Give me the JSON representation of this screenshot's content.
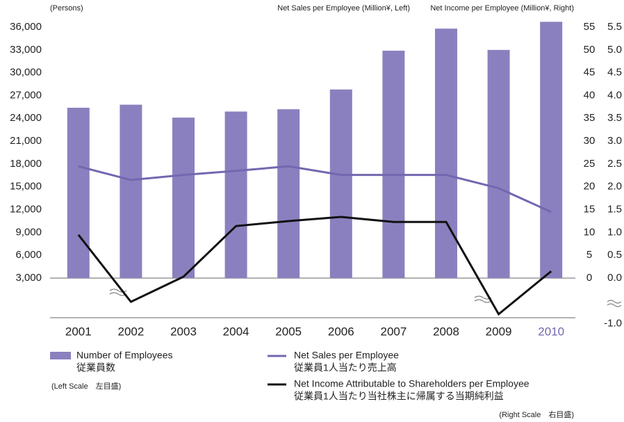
{
  "chart_data": {
    "type": "bar",
    "y_label": "(Persons)",
    "y2_label": "Net Sales per Employee (Million¥, Left)",
    "y3_label": "Net Income per Employee (Million¥, Right)",
    "categories": [
      "2001",
      "2002",
      "2003",
      "2004",
      "2005",
      "2006",
      "2007",
      "2008",
      "2009",
      "2010"
    ],
    "series": [
      {
        "name": "Number of Employees",
        "name_ja": "従業員数",
        "type": "bar",
        "axis": "y",
        "color": "#8b80bf",
        "values": [
          25400,
          25800,
          24100,
          24900,
          25200,
          27800,
          32900,
          35800,
          33000,
          36700
        ]
      },
      {
        "name": "Net Sales per Employee",
        "name_ja": "従業員1人当たり売上高",
        "type": "line",
        "axis": "y2",
        "color": "#7367b0",
        "values": [
          24.5,
          21.5,
          22.6,
          23.5,
          24.5,
          22.6,
          22.6,
          22.6,
          19.7,
          14.5
        ]
      },
      {
        "name": "Net Income Attributable to Shareholders per Employee",
        "name_ja": "従業員1人当たり当社株主に帰属する当期純利益",
        "type": "line",
        "axis": "y3",
        "color": "#111111",
        "values": [
          0.95,
          -0.52,
          0.03,
          1.14,
          1.25,
          1.34,
          1.23,
          1.23,
          -0.79,
          0.15
        ]
      }
    ],
    "legend_notes": [
      "(Left Scale　左目盛)",
      "(Right Scale　右目盛)"
    ],
    "ylim": [
      3000,
      36000
    ],
    "yticks": [
      {
        "value": 36000,
        "label": "36,000"
      },
      {
        "value": 33000,
        "label": "33,000"
      },
      {
        "value": 30000,
        "label": "30,000"
      },
      {
        "value": 27000,
        "label": "27,000"
      },
      {
        "value": 24000,
        "label": "24,000"
      },
      {
        "value": 21000,
        "label": "21,000"
      },
      {
        "value": 18000,
        "label": "18,000"
      },
      {
        "value": 15000,
        "label": "15,000"
      },
      {
        "value": 12000,
        "label": "12,000"
      },
      {
        "value": 9000,
        "label": "9,000"
      },
      {
        "value": 6000,
        "label": "6,000"
      },
      {
        "value": 3000,
        "label": "3,000"
      }
    ],
    "y2lim": [
      0,
      55
    ],
    "y2ticks": [
      55,
      50,
      45,
      40,
      35,
      30,
      25,
      20,
      15,
      10,
      5,
      0
    ],
    "y3lim": [
      -1.0,
      5.5
    ],
    "y3ticks": [
      {
        "value": 5.5,
        "label": "5.5"
      },
      {
        "value": 5.0,
        "label": "5.0"
      },
      {
        "value": 4.5,
        "label": "4.5"
      },
      {
        "value": 4.0,
        "label": "4.0"
      },
      {
        "value": 3.5,
        "label": "3.5"
      },
      {
        "value": 3.0,
        "label": "3.0"
      },
      {
        "value": 2.5,
        "label": "2.5"
      },
      {
        "value": 2.0,
        "label": "2.0"
      },
      {
        "value": 1.5,
        "label": "1.5"
      },
      {
        "value": 1.0,
        "label": "1.0"
      },
      {
        "value": 0.5,
        "label": "0.5"
      },
      {
        "value": 0.0,
        "label": "0.0"
      },
      {
        "value": -1.0,
        "label": "-1.0"
      }
    ]
  }
}
